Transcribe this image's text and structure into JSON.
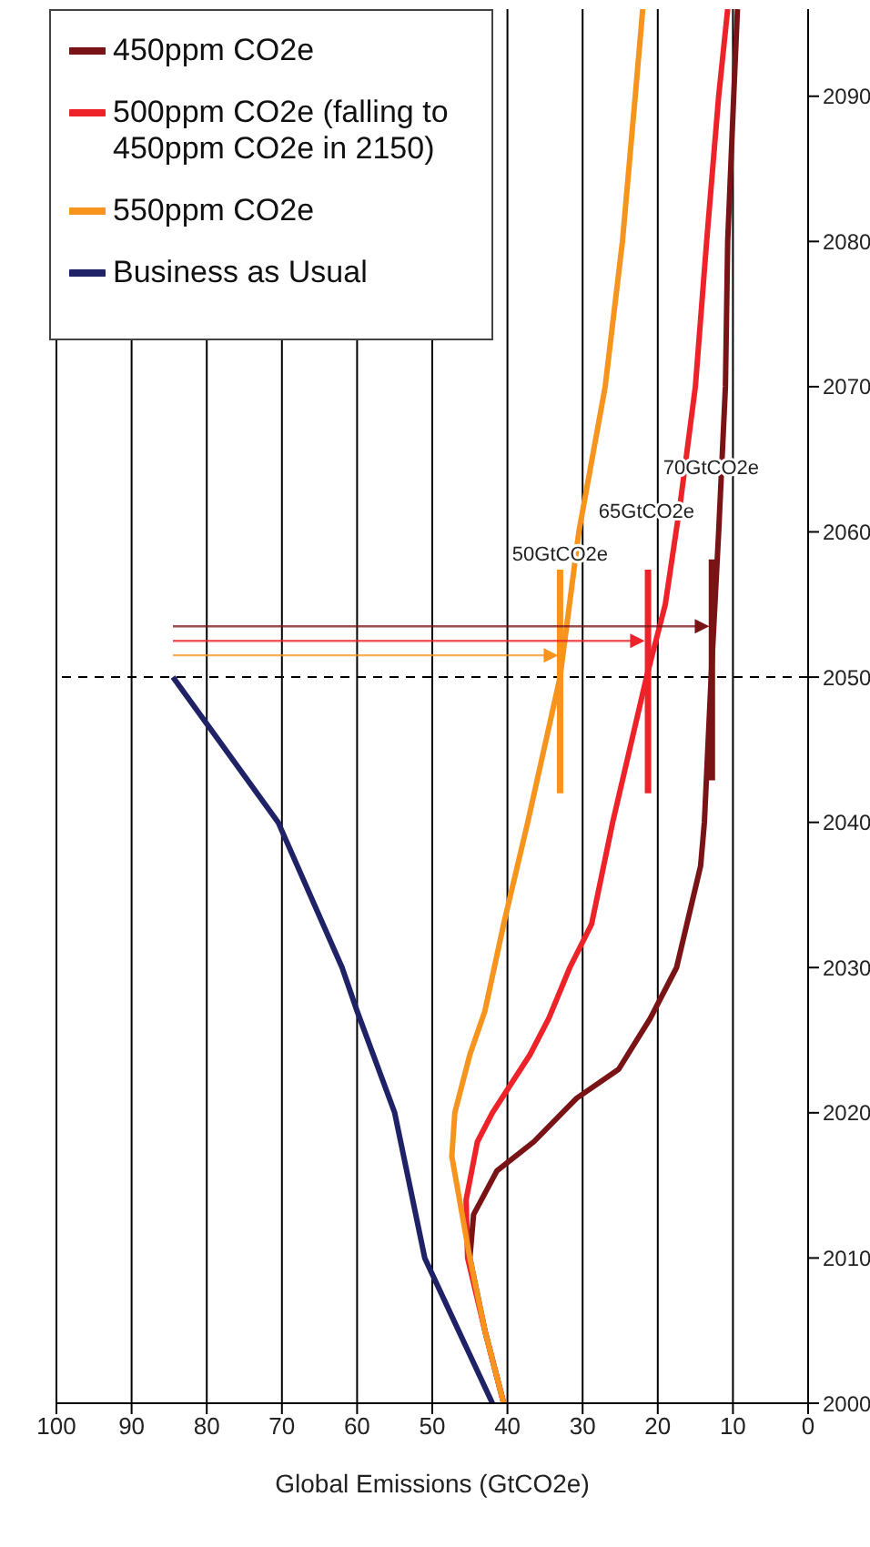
{
  "chart_data": {
    "type": "line",
    "orientation": "horizontal",
    "xlabel": "Global Emissions (GtCO2e)",
    "xlim": [
      100,
      0
    ],
    "xticks": [
      100,
      90,
      80,
      70,
      60,
      50,
      40,
      30,
      20,
      10,
      0
    ],
    "ylim": [
      2000,
      2096
    ],
    "yticks": [
      2000,
      2010,
      2020,
      2030,
      2040,
      2050,
      2060,
      2070,
      2080,
      2090
    ],
    "grid": "x",
    "legend": "top left",
    "marker": "none",
    "line_style": "solid",
    "ref_lines": [
      {
        "axis": "y",
        "value": 2050,
        "color": "#000000",
        "line_style": "dashed"
      }
    ],
    "annotations": [
      "70GtCO2e",
      "65GtCO2e",
      "50GtCO2e"
    ],
    "series": [
      {
        "name": "450ppm CO2e",
        "color": "#7a1315",
        "x": [
          2000,
          2005,
          2010,
          2013,
          2016,
          2018,
          2021,
          2023,
          2026.5,
          2030,
          2037,
          2040,
          2050,
          2060,
          2070,
          2080,
          2090,
          2096
        ],
        "values": [
          40.5,
          43,
          45,
          44.5,
          41.4,
          36.5,
          30.8,
          25.2,
          21,
          17.5,
          14.3,
          13.8,
          12.9,
          11.9,
          11,
          10.7,
          9.9,
          9.4
        ]
      },
      {
        "name": "500ppm CO2e (falling to 450ppm CO2e in 2150)",
        "color": "#ee2229",
        "x": [
          2000,
          2005,
          2010,
          2014,
          2018,
          2020,
          2024,
          2026.5,
          2030,
          2033,
          2040,
          2050,
          2055,
          2062,
          2070,
          2080,
          2090,
          2096
        ],
        "values": [
          40.5,
          43,
          45.3,
          45.5,
          44,
          42,
          37,
          34.5,
          31.7,
          28.8,
          26,
          21.5,
          19,
          17,
          15,
          13.5,
          11.9,
          10.7
        ]
      },
      {
        "name": "550ppm CO2e",
        "color": "#f7941d",
        "x": [
          2000,
          2005,
          2010,
          2017,
          2020,
          2024,
          2027,
          2033,
          2040,
          2050,
          2060,
          2070,
          2080,
          2090,
          2096
        ],
        "values": [
          40.5,
          43,
          45,
          47.4,
          47,
          45,
          43,
          40.5,
          37.3,
          33,
          30.5,
          27,
          24.7,
          23,
          22
        ]
      },
      {
        "name": "Business as Usual",
        "color": "#1f2266",
        "x": [
          2000,
          2010,
          2020,
          2027,
          2030,
          2040,
          2050
        ],
        "values": [
          42,
          51,
          55,
          60,
          62,
          70.5,
          84.5
        ]
      },
      {
        "color": "#7a1315",
        "x": [
          2042.9,
          2058.1
        ],
        "values": [
          12.8,
          12.8
        ]
      },
      {
        "color": "#ee2229",
        "x": [
          2042,
          2057.4
        ],
        "values": [
          21.3,
          21.3
        ]
      },
      {
        "color": "#f7941d",
        "x": [
          2042,
          2057.4
        ],
        "values": [
          33,
          33
        ]
      }
    ]
  }
}
